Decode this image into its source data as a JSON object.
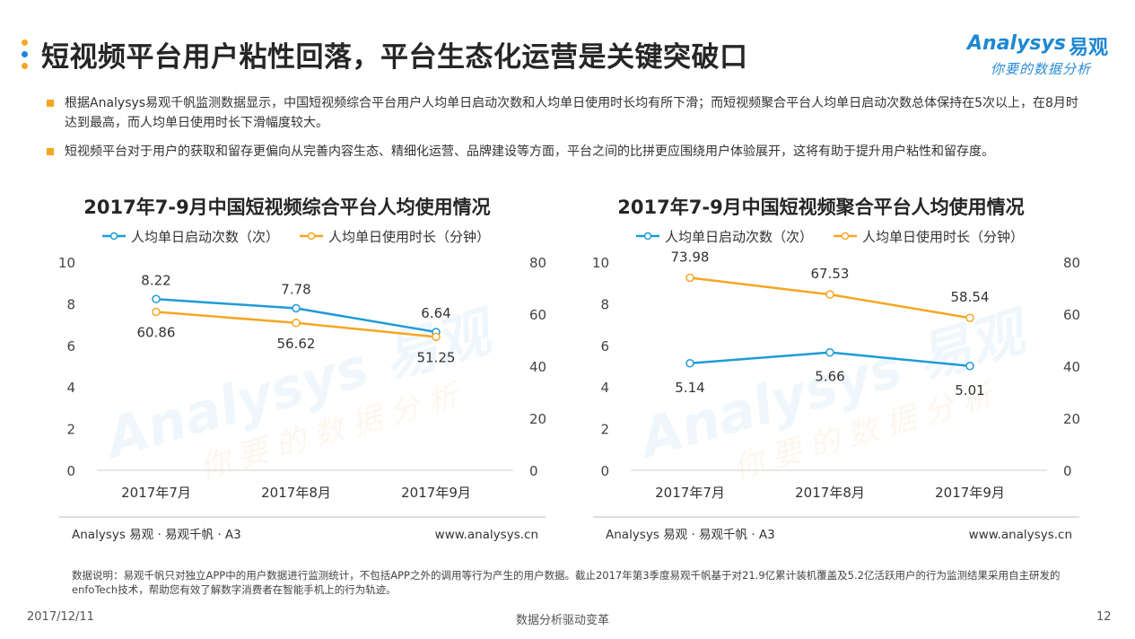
{
  "header": {
    "title": "短视频平台用户粘性回落，平台生态化运营是关键突破口",
    "dot_colors": [
      "#f5a623",
      "#1e88d2",
      "#f5a623"
    ]
  },
  "logo": {
    "brand": "Analysys",
    "brand_cn": "易观",
    "slogan": "你要的数据分析",
    "color": "#1e88d2"
  },
  "bullets": [
    "根据Analysys易观千帆监测数据显示，中国短视频综合平台用户人均单日启动次数和人均单日使用时长均有所下滑；而短视频聚合平台人均单日启动次数总体保持在5次以上，在8月时达到最高，而人均单日使用时长下滑幅度较大。",
    "短视频平台对于用户的获取和留存更偏向从完善内容生态、精细化运营、品牌建设等方面，平台之间的比拼更应围绕用户体验展开，这将有助于提升用户粘性和留存度。"
  ],
  "chart_data": [
    {
      "type": "line",
      "title": "2017年7-9月中国短视频综合平台人均使用情况",
      "categories": [
        "2017年7月",
        "2017年8月",
        "2017年9月"
      ],
      "series": [
        {
          "name": "人均单日启动次数（次）",
          "axis": "left",
          "color": "#1e9bd7",
          "values": [
            8.22,
            7.78,
            6.64
          ],
          "labels": [
            "8.22",
            "7.78",
            "6.64"
          ]
        },
        {
          "name": "人均单日使用时长（分钟）",
          "axis": "right",
          "color": "#f5a623",
          "values": [
            60.86,
            56.62,
            51.25
          ],
          "labels": [
            "60.86",
            "56.62",
            "51.25"
          ]
        }
      ],
      "y_left": {
        "min": 0,
        "max": 10,
        "ticks": [
          "0",
          "2",
          "4",
          "6",
          "8",
          "10"
        ]
      },
      "y_right": {
        "min": 0,
        "max": 80,
        "ticks": [
          "0",
          "20",
          "40",
          "60",
          "80"
        ]
      },
      "legend": "top",
      "grid": false,
      "source_left": "Analysys 易观 · 易观千帆 · A3",
      "source_right": "www.analysys.cn"
    },
    {
      "type": "line",
      "title": "2017年7-9月中国短视频聚合平台人均使用情况",
      "categories": [
        "2017年7月",
        "2017年8月",
        "2017年9月"
      ],
      "series": [
        {
          "name": "人均单日启动次数（次）",
          "axis": "left",
          "color": "#1e9bd7",
          "values": [
            5.14,
            5.66,
            5.01
          ],
          "labels": [
            "5.14",
            "5.66",
            "5.01"
          ]
        },
        {
          "name": "人均单日使用时长（分钟）",
          "axis": "right",
          "color": "#f5a623",
          "values": [
            73.98,
            67.53,
            58.54
          ],
          "labels": [
            "73.98",
            "67.53",
            "58.54"
          ]
        }
      ],
      "y_left": {
        "min": 0,
        "max": 10,
        "ticks": [
          "0",
          "2",
          "4",
          "6",
          "8",
          "10"
        ]
      },
      "y_right": {
        "min": 0,
        "max": 80,
        "ticks": [
          "0",
          "20",
          "40",
          "60",
          "80"
        ]
      },
      "legend": "top",
      "grid": false,
      "source_left": "Analysys 易观 · 易观千帆 · A3",
      "source_right": "www.analysys.cn"
    }
  ],
  "footnote": "数据说明：易观千帆只对独立APP中的用户数据进行监测统计，不包括APP之外的调用等行为产生的用户数据。截止2017年第3季度易观千帆基于对21.9亿累计装机覆盖及5.2亿活跃用户的行为监测结果采用自主研发的enfoTech技术，帮助您有效了解数字消费者在智能手机上的行为轨迹。",
  "footer": {
    "date": "2017/12/11",
    "center": "数据分析驱动变革",
    "page": "12"
  }
}
